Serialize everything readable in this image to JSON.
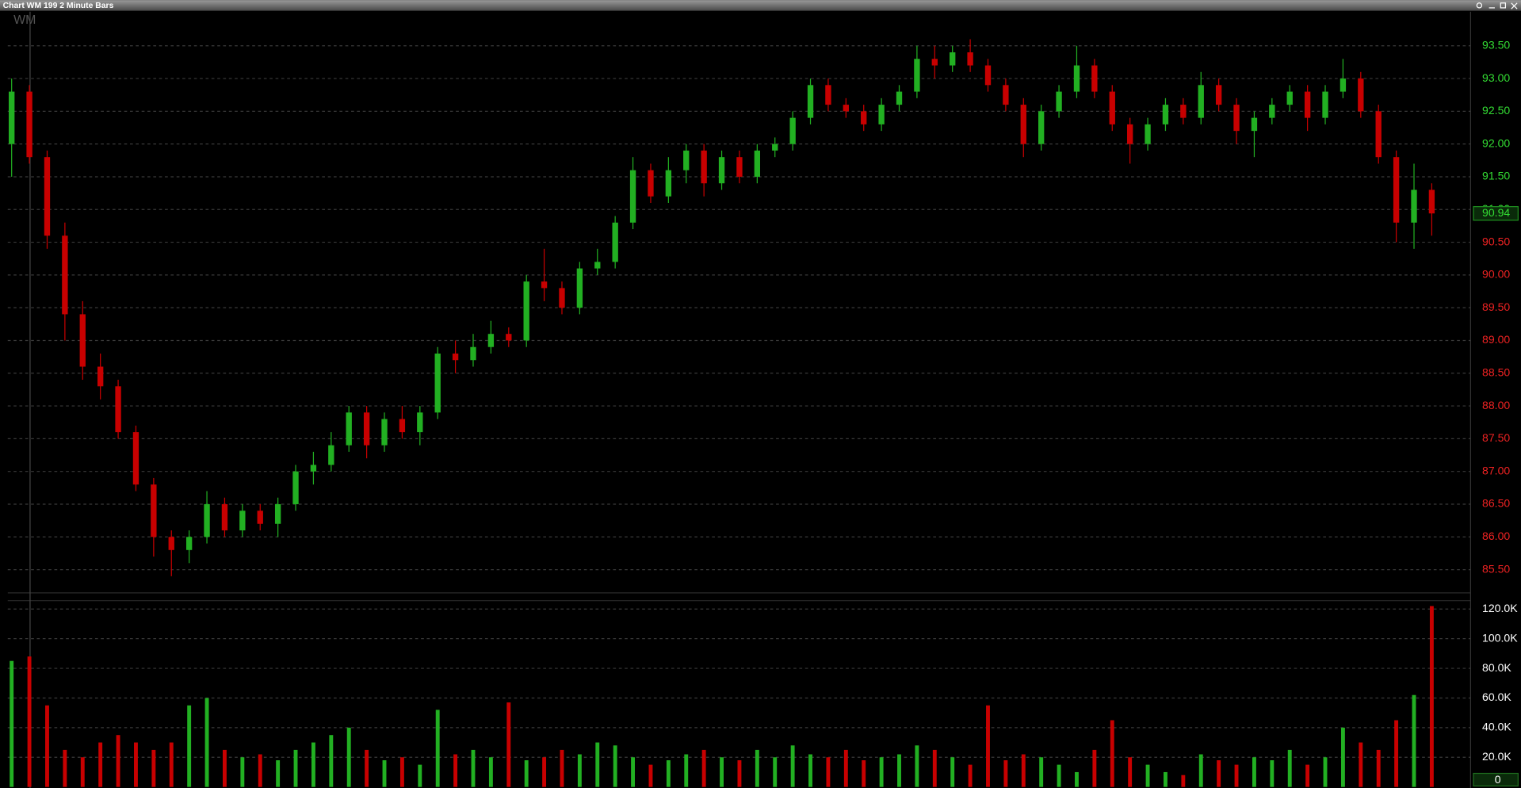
{
  "chart_data": {
    "type": "candlestick",
    "title": "Chart WM 199 2 Minute Bars",
    "symbol": "WM",
    "up_color": "#22b022",
    "down_color": "#c80000",
    "grid": true,
    "ylim": [
      85.16,
      94.02
    ],
    "yticks": [
      {
        "value": 85.5,
        "label": "85.50"
      },
      {
        "value": 86,
        "label": "86.00"
      },
      {
        "value": 86.5,
        "label": "86.50"
      },
      {
        "value": 87,
        "label": "87.00"
      },
      {
        "value": 87.5,
        "label": "87.50"
      },
      {
        "value": 88,
        "label": "88.00"
      },
      {
        "value": 88.5,
        "label": "88.50"
      },
      {
        "value": 89,
        "label": "89.00"
      },
      {
        "value": 89.5,
        "label": "89.50"
      },
      {
        "value": 90,
        "label": "90.00"
      },
      {
        "value": 90.5,
        "label": "90.50"
      },
      {
        "value": 91,
        "label": "91.00"
      },
      {
        "value": 91.5,
        "label": "91.50"
      },
      {
        "value": 92,
        "label": "92.00"
      },
      {
        "value": 92.5,
        "label": "92.50"
      },
      {
        "value": 93,
        "label": "93.00"
      },
      {
        "value": 93.5,
        "label": "93.50"
      }
    ],
    "open": [
      92.0,
      92.8,
      91.8,
      90.6,
      89.4,
      88.6,
      88.3,
      87.6,
      86.8,
      86.0,
      85.8,
      86.0,
      86.5,
      86.1,
      86.4,
      86.2,
      86.5,
      87.0,
      87.1,
      87.4,
      87.9,
      87.4,
      87.8,
      87.6,
      87.9,
      88.8,
      88.7,
      88.9,
      89.1,
      89.0,
      89.9,
      89.8,
      89.5,
      90.1,
      90.2,
      90.8,
      91.6,
      91.2,
      91.6,
      91.9,
      91.4,
      91.8,
      91.5,
      91.9,
      92.0,
      92.4,
      92.9,
      92.6,
      92.5,
      92.3,
      92.6,
      92.8,
      93.3,
      93.2,
      93.4,
      93.2,
      92.9,
      92.6,
      92.0,
      92.5,
      92.8,
      93.2,
      92.8,
      92.3,
      92.0,
      92.3,
      92.6,
      92.4,
      92.9,
      92.6,
      92.2,
      92.4,
      92.6,
      92.8,
      92.4,
      92.8,
      93.0,
      92.5,
      91.8,
      90.8,
      91.3
    ],
    "high": [
      93.0,
      92.9,
      91.9,
      90.8,
      89.6,
      88.8,
      88.4,
      87.7,
      86.9,
      86.1,
      86.1,
      86.7,
      86.6,
      86.5,
      86.5,
      86.6,
      87.1,
      87.3,
      87.6,
      88.0,
      88.0,
      87.9,
      88.0,
      88.0,
      88.9,
      89.0,
      89.1,
      89.3,
      89.2,
      90.0,
      90.4,
      89.9,
      90.2,
      90.4,
      90.9,
      91.8,
      91.7,
      91.8,
      92.0,
      92.0,
      91.9,
      91.9,
      92.0,
      92.1,
      92.5,
      93.0,
      93.0,
      92.7,
      92.6,
      92.7,
      92.9,
      93.5,
      93.5,
      93.5,
      93.6,
      93.3,
      93.0,
      92.7,
      92.6,
      92.9,
      93.5,
      93.3,
      92.9,
      92.4,
      92.4,
      92.7,
      92.7,
      93.1,
      93.0,
      92.7,
      92.5,
      92.7,
      92.9,
      92.9,
      92.9,
      93.3,
      93.1,
      92.6,
      91.9,
      91.7,
      91.4
    ],
    "low": [
      91.5,
      91.7,
      90.4,
      89.0,
      88.4,
      88.1,
      87.5,
      86.7,
      85.7,
      85.4,
      85.6,
      85.9,
      86.0,
      86.0,
      86.1,
      86.0,
      86.4,
      86.8,
      87.0,
      87.3,
      87.2,
      87.3,
      87.5,
      87.4,
      87.8,
      88.5,
      88.6,
      88.8,
      88.9,
      88.9,
      89.6,
      89.4,
      89.4,
      90.0,
      90.1,
      90.7,
      91.1,
      91.1,
      91.4,
      91.2,
      91.3,
      91.4,
      91.4,
      91.8,
      91.9,
      92.3,
      92.5,
      92.4,
      92.2,
      92.2,
      92.5,
      92.7,
      93.0,
      93.1,
      93.1,
      92.8,
      92.5,
      91.8,
      91.9,
      92.4,
      92.7,
      92.7,
      92.2,
      91.7,
      91.9,
      92.2,
      92.3,
      92.3,
      92.5,
      92.0,
      91.8,
      92.3,
      92.5,
      92.2,
      92.3,
      92.7,
      92.4,
      91.7,
      90.5,
      90.4,
      90.6
    ],
    "close": [
      92.8,
      91.8,
      90.6,
      89.4,
      88.6,
      88.3,
      87.6,
      86.8,
      86.0,
      85.8,
      86.0,
      86.5,
      86.1,
      86.4,
      86.2,
      86.5,
      87.0,
      87.1,
      87.4,
      87.9,
      87.4,
      87.8,
      87.6,
      87.9,
      88.8,
      88.7,
      88.9,
      89.1,
      89.0,
      89.9,
      89.8,
      89.5,
      90.1,
      90.2,
      90.8,
      91.6,
      91.2,
      91.6,
      91.9,
      91.4,
      91.8,
      91.5,
      91.9,
      92.0,
      92.4,
      92.9,
      92.6,
      92.5,
      92.3,
      92.6,
      92.8,
      93.3,
      93.2,
      93.4,
      93.2,
      92.9,
      92.6,
      92.0,
      92.5,
      92.8,
      93.2,
      92.8,
      92.3,
      92.0,
      92.3,
      92.6,
      92.4,
      92.9,
      92.6,
      92.2,
      92.4,
      92.6,
      92.8,
      92.4,
      92.8,
      93.0,
      92.5,
      91.8,
      90.8,
      91.3,
      90.94
    ],
    "volume": [
      85000,
      88000,
      55000,
      25000,
      20000,
      30000,
      35000,
      30000,
      25000,
      30000,
      55000,
      60000,
      25000,
      20000,
      22000,
      18000,
      25000,
      30000,
      35000,
      40000,
      25000,
      18000,
      20000,
      15000,
      52000,
      22000,
      25000,
      20000,
      57000,
      18000,
      20000,
      25000,
      22000,
      30000,
      28000,
      20000,
      15000,
      18000,
      22000,
      25000,
      20000,
      18000,
      25000,
      20000,
      28000,
      22000,
      20000,
      25000,
      18000,
      20000,
      22000,
      28000,
      25000,
      20000,
      15000,
      55000,
      18000,
      22000,
      20000,
      15000,
      10000,
      25000,
      45000,
      20000,
      15000,
      10000,
      8000,
      22000,
      18000,
      15000,
      20000,
      18000,
      25000,
      15000,
      20000,
      40000,
      30000,
      25000,
      45000,
      62000,
      122000
    ],
    "volume_ylim": [
      0,
      125000
    ],
    "volume_yticks": [
      0,
      {
        "value": 20000,
        "label": "20.0K"
      },
      {
        "value": 40000,
        "label": "40.0K"
      },
      {
        "value": 60000,
        "label": "60.0K"
      },
      {
        "value": 80000,
        "label": "80.0K"
      },
      {
        "value": 100000,
        "label": "100.0K"
      },
      {
        "value": 120000,
        "label": "120.0K"
      }
    ]
  }
}
